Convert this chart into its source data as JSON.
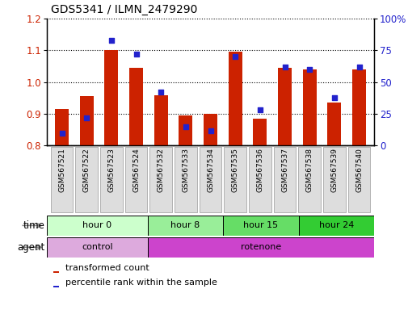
{
  "title": "GDS5341 / ILMN_2479290",
  "samples": [
    "GSM567521",
    "GSM567522",
    "GSM567523",
    "GSM567524",
    "GSM567532",
    "GSM567533",
    "GSM567534",
    "GSM567535",
    "GSM567536",
    "GSM567537",
    "GSM567538",
    "GSM567539",
    "GSM567540"
  ],
  "red_values": [
    0.915,
    0.955,
    1.1,
    1.045,
    0.96,
    0.895,
    0.9,
    1.097,
    0.885,
    1.045,
    1.04,
    0.935,
    1.04
  ],
  "blue_values": [
    10,
    22,
    83,
    72,
    42,
    15,
    12,
    70,
    28,
    62,
    60,
    38,
    62
  ],
  "ylim_left": [
    0.8,
    1.2
  ],
  "ylim_right": [
    0,
    100
  ],
  "yticks_left": [
    0.8,
    0.9,
    1.0,
    1.1,
    1.2
  ],
  "yticks_right": [
    0,
    25,
    50,
    75,
    100
  ],
  "ytick_labels_right": [
    "0",
    "25",
    "50",
    "75",
    "100%"
  ],
  "bar_color": "#cc2200",
  "dot_color": "#2222cc",
  "bar_bottom": 0.8,
  "time_groups": [
    {
      "label": "hour 0",
      "start": 0,
      "end": 4,
      "color": "#ccffcc"
    },
    {
      "label": "hour 8",
      "start": 4,
      "end": 7,
      "color": "#99ee99"
    },
    {
      "label": "hour 15",
      "start": 7,
      "end": 10,
      "color": "#66dd66"
    },
    {
      "label": "hour 24",
      "start": 10,
      "end": 13,
      "color": "#33cc33"
    }
  ],
  "agent_groups": [
    {
      "label": "control",
      "start": 0,
      "end": 4,
      "color": "#ddaadd"
    },
    {
      "label": "rotenone",
      "start": 4,
      "end": 13,
      "color": "#dd44dd"
    }
  ],
  "legend_red": "transformed count",
  "legend_blue": "percentile rank within the sample",
  "time_label": "time",
  "agent_label": "agent",
  "bg_color": "#ffffff",
  "grid_color": "#000000",
  "tick_label_color_left": "#cc2200",
  "tick_label_color_right": "#2222cc",
  "bar_width": 0.55,
  "sample_box_color": "#dddddd",
  "sample_box_edge": "#999999"
}
